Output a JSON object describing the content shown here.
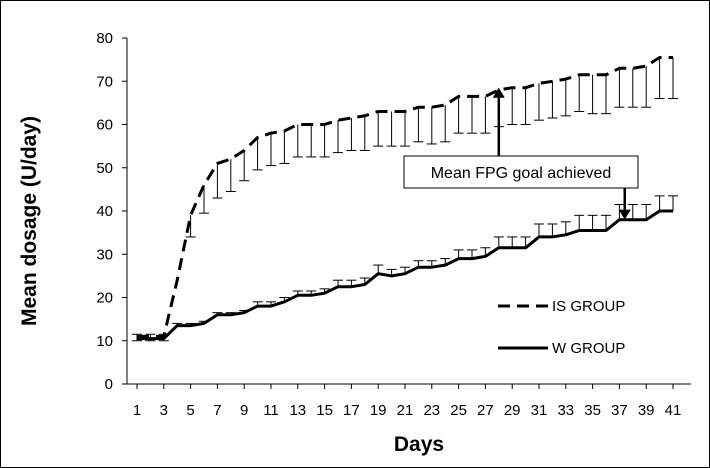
{
  "chart_data": {
    "type": "line",
    "xlabel": "Days",
    "ylabel": "Mean dosage (U/day)",
    "ylim": [
      0,
      80
    ],
    "yticks": [
      0,
      10,
      20,
      30,
      40,
      50,
      60,
      70,
      80
    ],
    "xlim": [
      1,
      41
    ],
    "xticks": [
      1,
      3,
      5,
      7,
      9,
      11,
      13,
      15,
      17,
      19,
      21,
      23,
      25,
      27,
      29,
      31,
      33,
      35,
      37,
      39,
      41
    ],
    "grid": false,
    "legend_position": "bottom-right",
    "series": [
      {
        "name": "IS GROUP",
        "style": "dashed",
        "color": "#000000",
        "x": [
          1,
          2,
          3,
          4,
          5,
          6,
          7,
          8,
          9,
          10,
          11,
          12,
          13,
          14,
          15,
          16,
          17,
          18,
          19,
          20,
          21,
          22,
          23,
          24,
          25,
          26,
          27,
          28,
          29,
          30,
          31,
          32,
          33,
          34,
          35,
          36,
          37,
          38,
          39,
          40,
          41
        ],
        "values": [
          11,
          11,
          11,
          24,
          39,
          46,
          51,
          52,
          54,
          57,
          58,
          58.5,
          60,
          60,
          60,
          61,
          61.5,
          62,
          63,
          63,
          63,
          64,
          64,
          64.5,
          66.5,
          66.5,
          66.5,
          68,
          68.5,
          68.5,
          69.5,
          70,
          70.5,
          71.5,
          71.5,
          71.5,
          73,
          73,
          73.5,
          75.5,
          75.5
        ],
        "error_lower": [
          1,
          1,
          1,
          0,
          5,
          6.5,
          8,
          7.5,
          7,
          7.5,
          7.5,
          7.5,
          7.5,
          7.5,
          7.5,
          7.5,
          7.5,
          8,
          8,
          8,
          8,
          8,
          8.5,
          8.5,
          8.5,
          8.5,
          8.5,
          8.5,
          8.5,
          8.5,
          8.5,
          8.5,
          8.5,
          8.5,
          9,
          9,
          9,
          9,
          9.5,
          9.5,
          9.5
        ]
      },
      {
        "name": "W GROUP",
        "style": "solid",
        "color": "#000000",
        "x": [
          1,
          2,
          3,
          4,
          5,
          6,
          7,
          8,
          9,
          10,
          11,
          12,
          13,
          14,
          15,
          16,
          17,
          18,
          19,
          20,
          21,
          22,
          23,
          24,
          25,
          26,
          27,
          28,
          29,
          30,
          31,
          32,
          33,
          34,
          35,
          36,
          37,
          38,
          39,
          40,
          41
        ],
        "values": [
          10.5,
          10.5,
          10.5,
          13.5,
          13.5,
          14,
          16,
          16,
          16.5,
          18,
          18,
          19,
          20.5,
          20.5,
          21,
          22.5,
          22.5,
          23,
          25.5,
          25,
          25.5,
          27,
          27,
          27.5,
          29,
          29,
          29.5,
          31.5,
          31.5,
          31.5,
          34,
          34,
          34.5,
          35.5,
          35.5,
          35.5,
          38,
          38,
          38,
          40,
          40
        ],
        "error_upper": [
          1,
          1,
          1,
          0.5,
          0.5,
          0.5,
          0.5,
          0.5,
          0.5,
          1,
          1,
          1,
          1,
          1,
          1,
          1.5,
          1.5,
          1.5,
          2,
          1.5,
          1.5,
          1.5,
          1.5,
          1.5,
          2,
          2,
          2,
          2.5,
          2.5,
          2.5,
          3,
          3,
          3,
          3.5,
          3.5,
          3.5,
          3.5,
          3.5,
          3.5,
          3.5,
          3.5
        ]
      }
    ],
    "annotations": [
      {
        "text": "Mean FPG goal achieved",
        "arrows": [
          {
            "to_x": 28,
            "to_y": 68.5
          },
          {
            "to_x": 37.4,
            "to_y": 38
          }
        ]
      }
    ]
  }
}
